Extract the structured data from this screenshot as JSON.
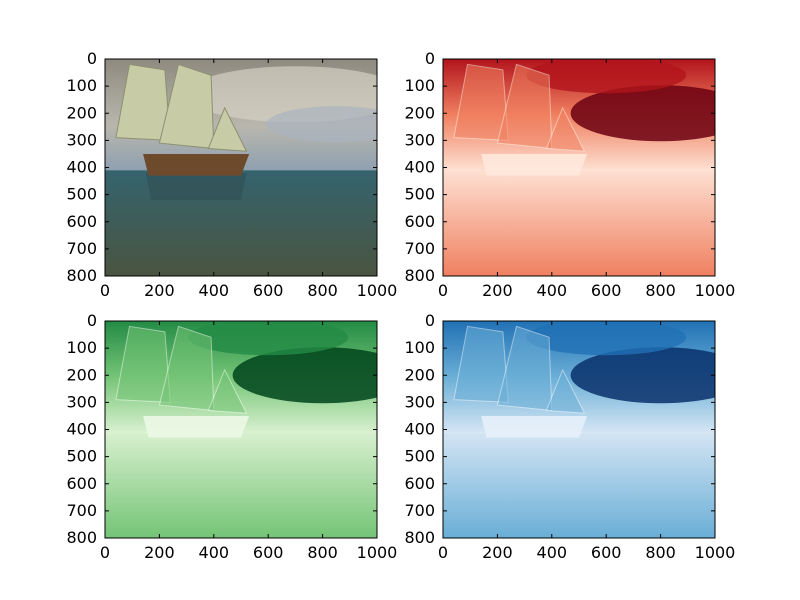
{
  "chart_data": [
    {
      "type": "heatmap",
      "colormap": "rgb",
      "colors": {
        "sky_top": "#8e8a80",
        "sky_mid": "#b9b7ad",
        "cloud": "#d8d4c6",
        "sea_top": "#34636e",
        "sea_bottom": "#4a5540",
        "hull": "#6d4a2c",
        "sail": "#c7cca6"
      },
      "x_ticks": [
        "0",
        "200",
        "400",
        "600",
        "800",
        "1000"
      ],
      "y_ticks": [
        "0",
        "100",
        "200",
        "300",
        "400",
        "500",
        "600",
        "700",
        "800"
      ],
      "xlim": [
        0,
        1000
      ],
      "ylim": [
        800,
        0
      ],
      "xlabel": "",
      "ylabel": "",
      "title": ""
    },
    {
      "type": "heatmap",
      "colormap": "Reds",
      "colors": {
        "light": "#fde0d2",
        "mid": "#f08060",
        "dark": "#b2141c",
        "darkest": "#6b0010",
        "outline": "#ffe8dc"
      },
      "x_ticks": [
        "0",
        "200",
        "400",
        "600",
        "800",
        "1000"
      ],
      "y_ticks": [
        "0",
        "100",
        "200",
        "300",
        "400",
        "500",
        "600",
        "700",
        "800"
      ],
      "xlim": [
        0,
        1000
      ],
      "ylim": [
        800,
        0
      ],
      "xlabel": "",
      "ylabel": "",
      "title": ""
    },
    {
      "type": "heatmap",
      "colormap": "Greens",
      "colors": {
        "light": "#d8f0cf",
        "mid": "#74c476",
        "dark": "#238b45",
        "darkest": "#00441b",
        "outline": "#ecf8e6"
      },
      "x_ticks": [
        "0",
        "200",
        "400",
        "600",
        "800",
        "1000"
      ],
      "y_ticks": [
        "0",
        "100",
        "200",
        "300",
        "400",
        "500",
        "600",
        "700",
        "800"
      ],
      "xlim": [
        0,
        1000
      ],
      "ylim": [
        800,
        0
      ],
      "xlabel": "",
      "ylabel": "",
      "title": ""
    },
    {
      "type": "heatmap",
      "colormap": "Blues",
      "colors": {
        "light": "#d4e5f4",
        "mid": "#6aaed6",
        "dark": "#2171b5",
        "darkest": "#08306b",
        "outline": "#e6f0fa"
      },
      "x_ticks": [
        "0",
        "200",
        "400",
        "600",
        "800",
        "1000"
      ],
      "y_ticks": [
        "0",
        "100",
        "200",
        "300",
        "400",
        "500",
        "600",
        "700",
        "800"
      ],
      "xlim": [
        0,
        1000
      ],
      "ylim": [
        800,
        0
      ],
      "xlabel": "",
      "ylabel": "",
      "title": ""
    }
  ]
}
